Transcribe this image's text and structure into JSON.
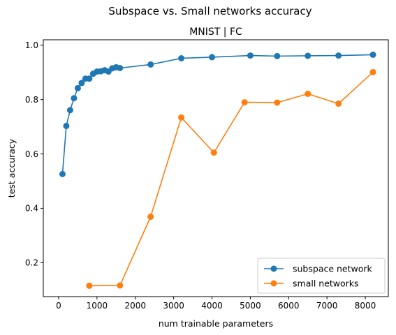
{
  "chart_data": {
    "type": "line",
    "suptitle": "Subspace vs. Small networks accuracy",
    "title": "MNIST | FC",
    "xlabel": "num trainable parameters",
    "ylabel": "test accuracy",
    "xlim": [
      -400,
      8600
    ],
    "ylim": [
      0.075,
      1.02
    ],
    "xticks": [
      0,
      1000,
      2000,
      3000,
      4000,
      5000,
      6000,
      7000,
      8000
    ],
    "yticks": [
      0.2,
      0.4,
      0.6,
      0.8,
      1.0
    ],
    "grid": false,
    "legend_position": "lower-right",
    "series": [
      {
        "name": "subspace network",
        "color": "#1f77b4",
        "marker": "circle",
        "x": [
          100,
          200,
          300,
          400,
          500,
          600,
          700,
          800,
          900,
          1000,
          1100,
          1200,
          1300,
          1400,
          1500,
          1600,
          2400,
          3200,
          4000,
          5000,
          5700,
          6500,
          7300,
          8200
        ],
        "y": [
          0.526,
          0.703,
          0.761,
          0.805,
          0.842,
          0.861,
          0.877,
          0.877,
          0.895,
          0.903,
          0.904,
          0.908,
          0.903,
          0.915,
          0.919,
          0.916,
          0.929,
          0.952,
          0.956,
          0.962,
          0.96,
          0.961,
          0.962,
          0.965
        ]
      },
      {
        "name": "small networks",
        "color": "#ff7f0e",
        "marker": "circle",
        "x": [
          800,
          1600,
          2400,
          3200,
          4050,
          4850,
          5700,
          6500,
          7300,
          8200
        ],
        "y": [
          0.115,
          0.116,
          0.369,
          0.734,
          0.605,
          0.79,
          0.789,
          0.821,
          0.785,
          0.901
        ]
      }
    ]
  }
}
